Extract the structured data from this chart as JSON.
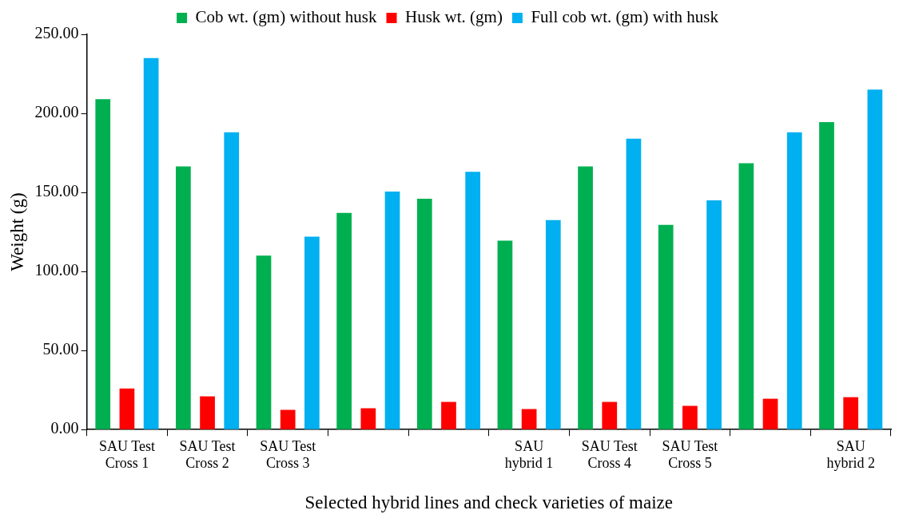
{
  "chart_data": {
    "type": "bar",
    "xlabel": "Selected hybrid lines and check varieties of maize",
    "ylabel": "Weight (g)",
    "categories": [
      "SAU Test Cross 1",
      "SAU Test Cross 2",
      "SAU Test Cross 3",
      null,
      null,
      "SAU hybrid 1",
      "SAU Test Cross 4",
      "SAU Test Cross 5",
      null,
      "SAU hybrid 2"
    ],
    "series": [
      {
        "name": "Cob wt. (gm) without husk",
        "color": "#00b050",
        "values": [
          209,
          166.5,
          110,
          137,
          146,
          119.5,
          166.5,
          129.5,
          168.5,
          194.5
        ]
      },
      {
        "name": "Husk wt. (gm)",
        "color": "#ff0000",
        "values": [
          26,
          21,
          12.5,
          13.5,
          17.5,
          13,
          17.5,
          15,
          19.5,
          20.5
        ]
      },
      {
        "name": "Full cob wt. (gm) with husk",
        "color": "#00b0f0",
        "values": [
          235,
          188,
          122,
          150.5,
          163,
          132.5,
          184,
          145,
          188,
          215
        ]
      }
    ],
    "ylim": [
      0,
      250
    ],
    "yticks": [
      {
        "value": 0,
        "label": "0.00"
      },
      {
        "value": 50,
        "label": "50.00"
      },
      {
        "value": 100,
        "label": "100.00"
      },
      {
        "value": 150,
        "label": "150.00"
      },
      {
        "value": 200,
        "label": "200.00"
      },
      {
        "value": 250,
        "label": "250.00"
      }
    ],
    "grid": false,
    "legend": "top"
  }
}
